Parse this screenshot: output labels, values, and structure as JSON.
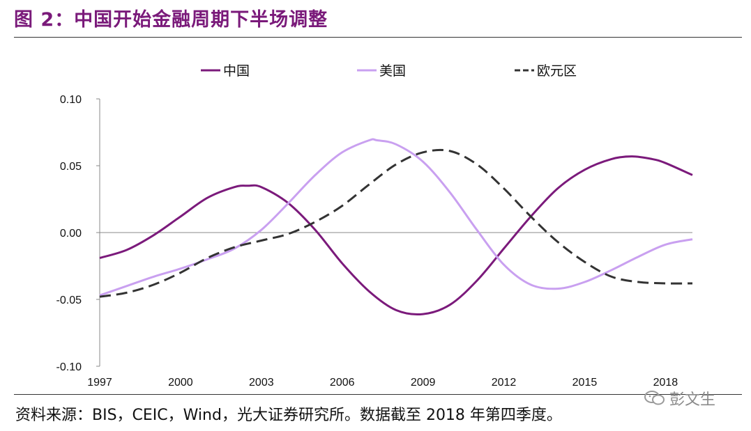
{
  "figure": {
    "title": "图 2：中国开始金融周期下半场调整",
    "source": "资料来源：BIS，CEIC，Wind，光大证券研究所。数据截至 2018 年第四季度。",
    "watermark": "彭文生"
  },
  "chart_data": {
    "type": "line",
    "title": "",
    "xlabel": "",
    "ylabel": "",
    "xlim": [
      1997,
      2019
    ],
    "ylim": [
      -0.1,
      0.1
    ],
    "x_ticks": [
      1997,
      2000,
      2003,
      2006,
      2009,
      2012,
      2015,
      2018
    ],
    "x_tick_labels": [
      "1997",
      "2000",
      "2003",
      "2006",
      "2009",
      "2012",
      "2015",
      "2018"
    ],
    "y_ticks": [
      0.1,
      0.05,
      0.0,
      -0.05,
      -0.1
    ],
    "y_tick_labels": [
      "0.10",
      "0.05",
      "0.00",
      "-0.05",
      "-0.10"
    ],
    "grid": false,
    "zero_line": true,
    "legend_position": "top",
    "series": [
      {
        "name": "中国",
        "color": "#7b1a7b",
        "dash": "solid",
        "points": [
          [
            1997.0,
            -0.019
          ],
          [
            1998.0,
            -0.013
          ],
          [
            1999.0,
            -0.002
          ],
          [
            2000.0,
            0.012
          ],
          [
            2001.0,
            0.026
          ],
          [
            2002.0,
            0.034
          ],
          [
            2002.5,
            0.035
          ],
          [
            2003.0,
            0.034
          ],
          [
            2004.0,
            0.022
          ],
          [
            2005.0,
            0.002
          ],
          [
            2006.0,
            -0.023
          ],
          [
            2007.0,
            -0.044
          ],
          [
            2008.0,
            -0.058
          ],
          [
            2009.0,
            -0.061
          ],
          [
            2010.0,
            -0.054
          ],
          [
            2011.0,
            -0.036
          ],
          [
            2012.0,
            -0.012
          ],
          [
            2013.0,
            0.012
          ],
          [
            2014.0,
            0.033
          ],
          [
            2015.0,
            0.047
          ],
          [
            2016.0,
            0.055
          ],
          [
            2016.75,
            0.057
          ],
          [
            2017.5,
            0.055
          ],
          [
            2018.0,
            0.052
          ],
          [
            2019.0,
            0.043
          ]
        ]
      },
      {
        "name": "美国",
        "color": "#c9a0f0",
        "dash": "solid",
        "points": [
          [
            1997.0,
            -0.047
          ],
          [
            1998.0,
            -0.04
          ],
          [
            1999.0,
            -0.033
          ],
          [
            2000.0,
            -0.027
          ],
          [
            2001.0,
            -0.02
          ],
          [
            2002.0,
            -0.012
          ],
          [
            2003.0,
            0.002
          ],
          [
            2004.0,
            0.022
          ],
          [
            2005.0,
            0.043
          ],
          [
            2006.0,
            0.06
          ],
          [
            2007.0,
            0.069
          ],
          [
            2007.3,
            0.069
          ],
          [
            2008.0,
            0.066
          ],
          [
            2009.0,
            0.053
          ],
          [
            2010.0,
            0.03
          ],
          [
            2011.0,
            0.002
          ],
          [
            2012.0,
            -0.024
          ],
          [
            2013.0,
            -0.039
          ],
          [
            2014.0,
            -0.042
          ],
          [
            2015.0,
            -0.037
          ],
          [
            2016.0,
            -0.028
          ],
          [
            2017.0,
            -0.018
          ],
          [
            2018.0,
            -0.009
          ],
          [
            2019.0,
            -0.005
          ]
        ]
      },
      {
        "name": "欧元区",
        "color": "#333333",
        "dash": "dashed",
        "points": [
          [
            1997.0,
            -0.048
          ],
          [
            1998.0,
            -0.045
          ],
          [
            1999.0,
            -0.039
          ],
          [
            2000.0,
            -0.03
          ],
          [
            2001.0,
            -0.019
          ],
          [
            2002.0,
            -0.011
          ],
          [
            2003.0,
            -0.006
          ],
          [
            2004.0,
            -0.001
          ],
          [
            2005.0,
            0.008
          ],
          [
            2006.0,
            0.02
          ],
          [
            2007.0,
            0.036
          ],
          [
            2008.0,
            0.051
          ],
          [
            2009.0,
            0.06
          ],
          [
            2010.0,
            0.061
          ],
          [
            2011.0,
            0.051
          ],
          [
            2012.0,
            0.033
          ],
          [
            2013.0,
            0.012
          ],
          [
            2014.0,
            -0.007
          ],
          [
            2015.0,
            -0.022
          ],
          [
            2016.0,
            -0.033
          ],
          [
            2017.0,
            -0.037
          ],
          [
            2018.0,
            -0.038
          ],
          [
            2019.0,
            -0.038
          ]
        ]
      }
    ]
  }
}
